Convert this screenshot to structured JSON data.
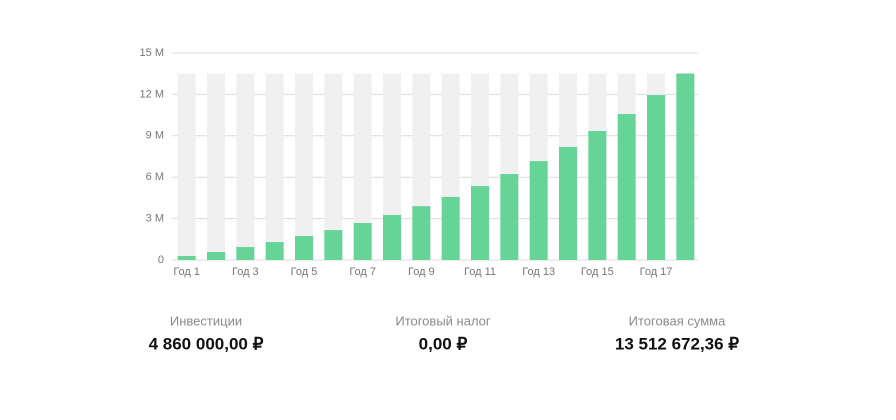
{
  "chart_data": {
    "type": "bar",
    "categories": [
      "Год 1",
      null,
      "Год 3",
      null,
      "Год 5",
      null,
      "Год 7",
      null,
      "Год 9",
      null,
      "Год 11",
      null,
      "Год 13",
      null,
      "Год 15",
      null,
      "Год 17",
      null
    ],
    "values": [
      290000,
      580000,
      940000,
      1300000,
      1740000,
      2170000,
      2680000,
      3260000,
      3900000,
      4570000,
      5360000,
      6230000,
      7170000,
      8190000,
      9350000,
      10580000,
      11960000,
      13512672.36
    ],
    "color": "#66d496",
    "ylim": [
      0,
      15000000
    ],
    "yticks": [
      {
        "value": 0,
        "label": "0"
      },
      {
        "value": 3000000,
        "label": "3 M"
      },
      {
        "value": 6000000,
        "label": "6 M"
      },
      {
        "value": 9000000,
        "label": "9 M"
      },
      {
        "value": 12000000,
        "label": "12 M"
      },
      {
        "value": 15000000,
        "label": "15 M"
      }
    ],
    "grid": true
  },
  "summary": [
    {
      "label": "Инвестиции",
      "value": "4 860 000,00 ₽"
    },
    {
      "label": "Итоговый налог",
      "value": "0,00 ₽"
    },
    {
      "label": "Итоговая сумма",
      "value": "13 512 672,36 ₽"
    }
  ]
}
